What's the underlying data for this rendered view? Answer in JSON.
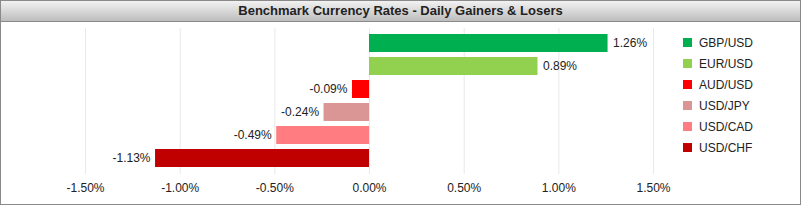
{
  "chart_data": {
    "type": "bar",
    "title": "Benchmark Currency Rates - Daily Gainers & Losers",
    "orientation": "horizontal",
    "categories": [
      "GBP/USD",
      "EUR/USD",
      "AUD/USD",
      "USD/JPY",
      "USD/CAD",
      "USD/CHF"
    ],
    "values": [
      1.26,
      0.89,
      -0.09,
      -0.24,
      -0.49,
      -1.13
    ],
    "value_labels": [
      "1.26%",
      "0.89%",
      "-0.09%",
      "-0.24%",
      "-0.49%",
      "-1.13%"
    ],
    "colors": [
      "#00b050",
      "#92d050",
      "#ff0000",
      "#da9694",
      "#ff7c80",
      "#c00000"
    ],
    "xlim": [
      -1.5,
      1.5
    ],
    "xticks": [
      {
        "value": -1.5,
        "label": "-1.50%"
      },
      {
        "value": -1.0,
        "label": "-1.00%"
      },
      {
        "value": -0.5,
        "label": "-0.50%"
      },
      {
        "value": 0,
        "label": "0.00%"
      },
      {
        "value": 0.5,
        "label": "0.50%"
      },
      {
        "value": 1.0,
        "label": "1.00%"
      },
      {
        "value": 1.5,
        "label": "1.50%"
      }
    ],
    "grid": true,
    "data_labels": true,
    "tick_labels": "x",
    "legend": "right"
  }
}
